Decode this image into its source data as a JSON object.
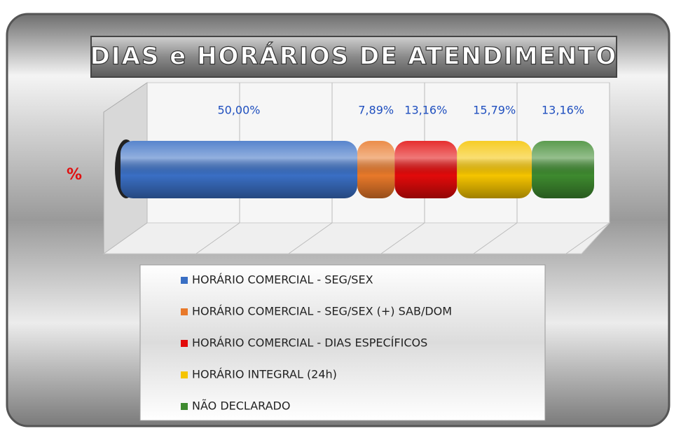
{
  "chart_data": {
    "type": "stacked_bar_h",
    "title": "DIAS e HORÁRIOS DE ATENDIMENTO",
    "categories": [
      "%"
    ],
    "xlim": [
      0,
      100
    ],
    "xticks": [
      0,
      20,
      40,
      60,
      80,
      100
    ],
    "grid": true,
    "series": [
      {
        "name": "HORÁRIO COMERCIAL - SEG/SEX",
        "color": "#3a6fc4",
        "values": [
          50.0
        ],
        "value_labels": [
          "50,00%"
        ]
      },
      {
        "name": "HORÁRIO COMERCIAL - SEG/SEX (+) SAB/DOM",
        "color": "#e8792a",
        "values": [
          7.89
        ],
        "value_labels": [
          "7,89%"
        ]
      },
      {
        "name": "HORÁRIO COMERCIAL - DIAS ESPECÍFICOS",
        "color": "#e20a0a",
        "values": [
          13.16
        ],
        "value_labels": [
          "13,16%"
        ]
      },
      {
        "name": "HORÁRIO INTEGRAL (24h)",
        "color": "#f5c400",
        "values": [
          15.79
        ],
        "value_labels": [
          "15,79%"
        ]
      },
      {
        "name": "NÃO DECLARADO",
        "color": "#3e8a2f",
        "values": [
          13.16
        ],
        "value_labels": [
          "13,16%"
        ]
      }
    ]
  }
}
